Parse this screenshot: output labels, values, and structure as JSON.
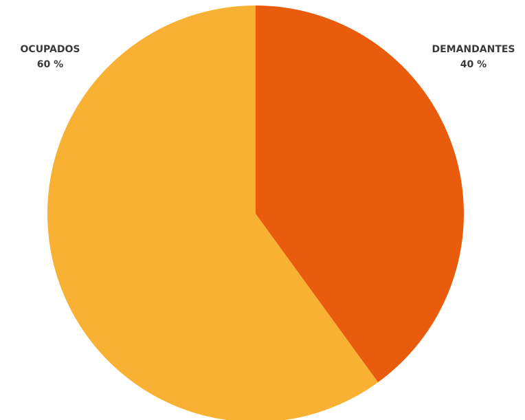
{
  "chart_data": {
    "type": "pie",
    "start_angle_deg": 0,
    "direction": "clockwise",
    "slices": [
      {
        "key": "demandantes",
        "label": "DEMANDANTES",
        "value": 40,
        "display": "40 %",
        "color": "#E95C0D"
      },
      {
        "key": "ocupados",
        "label": "OCUPADOS",
        "value": 60,
        "display": "60 %",
        "color": "#F8B133"
      }
    ]
  }
}
